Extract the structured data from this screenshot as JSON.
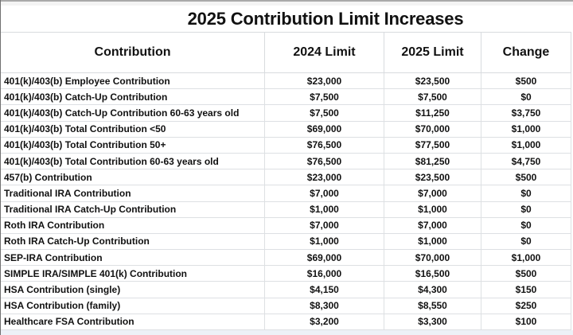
{
  "chart_data": {
    "type": "table",
    "title": "2025 Contribution Limit Increases",
    "columns": [
      "Contribution",
      "2024 Limit",
      "2025 Limit",
      "Change"
    ],
    "rows": [
      [
        "401(k)/403(b) Employee Contribution",
        "$23,000",
        "$23,500",
        "$500"
      ],
      [
        "401(k)/403(b) Catch-Up Contribution",
        "$7,500",
        "$7,500",
        "$0"
      ],
      [
        "401(k)/403(b) Catch-Up Contribution 60-63 years old",
        "$7,500",
        "$11,250",
        "$3,750"
      ],
      [
        "401(k)/403(b) Total Contribution <50",
        "$69,000",
        "$70,000",
        "$1,000"
      ],
      [
        "401(k)/403(b) Total Contribution 50+",
        "$76,500",
        "$77,500",
        "$1,000"
      ],
      [
        "401(k)/403(b) Total Contribution 60-63 years old",
        "$76,500",
        "$81,250",
        "$4,750"
      ],
      [
        "457(b) Contribution",
        "$23,000",
        "$23,500",
        "$500"
      ],
      [
        "Traditional IRA Contribution",
        "$7,000",
        "$7,000",
        "$0"
      ],
      [
        "Traditional IRA Catch-Up Contribution",
        "$1,000",
        "$1,000",
        "$0"
      ],
      [
        "Roth IRA Contribution",
        "$7,000",
        "$7,000",
        "$0"
      ],
      [
        "Roth IRA Catch-Up Contribution",
        "$1,000",
        "$1,000",
        "$0"
      ],
      [
        "SEP-IRA Contribution",
        "$69,000",
        "$70,000",
        "$1,000"
      ],
      [
        "SIMPLE IRA/SIMPLE 401(k) Contribution",
        "$16,000",
        "$16,500",
        "$500"
      ],
      [
        "HSA Contribution (single)",
        "$4,150",
        "$4,300",
        "$150"
      ],
      [
        "HSA Contribution (family)",
        "$8,300",
        "$8,550",
        "$250"
      ],
      [
        "Healthcare FSA Contribution",
        "$3,200",
        "$3,300",
        "$100"
      ]
    ]
  },
  "colors": {
    "text": "#111111",
    "gridline": "#d8dbde",
    "top_band": "#f4f4f4",
    "bottom_band": "#edf1f7",
    "left_edge": "#707070",
    "background": "#ffffff"
  }
}
